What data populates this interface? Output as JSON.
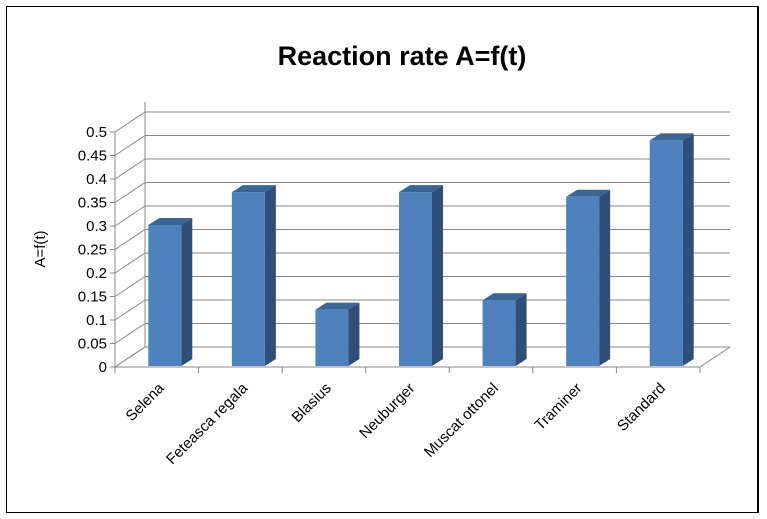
{
  "chart_data": {
    "type": "bar",
    "title": "Reaction rate A=f(t)",
    "xlabel": "",
    "ylabel": "A=f(t)",
    "categories": [
      "Selena",
      "Feteasca regala",
      "Blasius",
      "Neuburger",
      "Muscat ottonel",
      "Traminer",
      "Standard"
    ],
    "values": [
      0.3,
      0.37,
      0.12,
      0.37,
      0.14,
      0.36,
      0.48
    ],
    "ylim": [
      0,
      0.5
    ],
    "yticks": [
      "0",
      "0.05",
      "0.1",
      "0.15",
      "0.2",
      "0.25",
      "0.3",
      "0.35",
      "0.4",
      "0.45",
      "0.5"
    ],
    "grid": true,
    "legend": "none",
    "style": "3d-column",
    "colors": {
      "bar_front": "#4f81bd",
      "bar_side": "#2f4f7a",
      "bar_top": "#3b6595",
      "grid": "#888888"
    }
  }
}
